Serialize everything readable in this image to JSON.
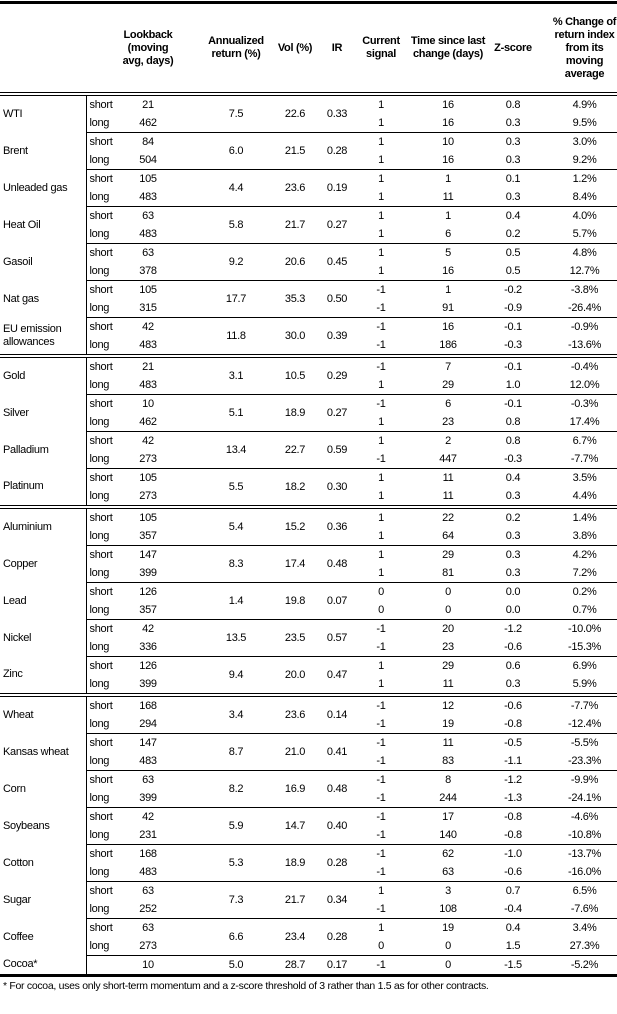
{
  "headers": {
    "name": "",
    "label": "",
    "lookback": "Lookback (moving avg, days)",
    "annualized": "Annualized return (%)",
    "vol": "Vol (%)",
    "ir": "IR",
    "signal": "Current signal",
    "time": "Time since last change (days)",
    "z": "Z-score",
    "pct": "% Change of return index from its moving average"
  },
  "sections": [
    {
      "commodities": [
        {
          "name": "WTI",
          "ann": "7.5",
          "vol": "22.6",
          "ir": "0.33",
          "rows": [
            {
              "label": "short",
              "lookback": "21",
              "signal": "1",
              "time": "16",
              "z": "0.8",
              "pct": "4.9%"
            },
            {
              "label": "long",
              "lookback": "462",
              "signal": "1",
              "time": "16",
              "z": "0.3",
              "pct": "9.5%"
            }
          ]
        },
        {
          "name": "Brent",
          "ann": "6.0",
          "vol": "21.5",
          "ir": "0.28",
          "rows": [
            {
              "label": "short",
              "lookback": "84",
              "signal": "1",
              "time": "10",
              "z": "0.3",
              "pct": "3.0%"
            },
            {
              "label": "long",
              "lookback": "504",
              "signal": "1",
              "time": "16",
              "z": "0.3",
              "pct": "9.2%"
            }
          ]
        },
        {
          "name": "Unleaded gas",
          "ann": "4.4",
          "vol": "23.6",
          "ir": "0.19",
          "rows": [
            {
              "label": "short",
              "lookback": "105",
              "signal": "1",
              "time": "1",
              "z": "0.1",
              "pct": "1.2%"
            },
            {
              "label": "long",
              "lookback": "483",
              "signal": "1",
              "time": "11",
              "z": "0.3",
              "pct": "8.4%"
            }
          ]
        },
        {
          "name": "Heat Oil",
          "ann": "5.8",
          "vol": "21.7",
          "ir": "0.27",
          "rows": [
            {
              "label": "short",
              "lookback": "63",
              "signal": "1",
              "time": "1",
              "z": "0.4",
              "pct": "4.0%"
            },
            {
              "label": "long",
              "lookback": "483",
              "signal": "1",
              "time": "6",
              "z": "0.2",
              "pct": "5.7%"
            }
          ]
        },
        {
          "name": "Gasoil",
          "ann": "9.2",
          "vol": "20.6",
          "ir": "0.45",
          "rows": [
            {
              "label": "short",
              "lookback": "63",
              "signal": "1",
              "time": "5",
              "z": "0.5",
              "pct": "4.8%"
            },
            {
              "label": "long",
              "lookback": "378",
              "signal": "1",
              "time": "16",
              "z": "0.5",
              "pct": "12.7%"
            }
          ]
        },
        {
          "name": "Nat gas",
          "ann": "17.7",
          "vol": "35.3",
          "ir": "0.50",
          "rows": [
            {
              "label": "short",
              "lookback": "105",
              "signal": "-1",
              "time": "1",
              "z": "-0.2",
              "pct": "-3.8%"
            },
            {
              "label": "long",
              "lookback": "315",
              "signal": "-1",
              "time": "91",
              "z": "-0.9",
              "pct": "-26.4%"
            }
          ]
        },
        {
          "name": "EU emission allowances",
          "ann": "11.8",
          "vol": "30.0",
          "ir": "0.39",
          "rows": [
            {
              "label": "short",
              "lookback": "42",
              "signal": "-1",
              "time": "16",
              "z": "-0.1",
              "pct": "-0.9%"
            },
            {
              "label": "long",
              "lookback": "483",
              "signal": "-1",
              "time": "186",
              "z": "-0.3",
              "pct": "-13.6%"
            }
          ]
        }
      ]
    },
    {
      "commodities": [
        {
          "name": "Gold",
          "ann": "3.1",
          "vol": "10.5",
          "ir": "0.29",
          "rows": [
            {
              "label": "short",
              "lookback": "21",
              "signal": "-1",
              "time": "7",
              "z": "-0.1",
              "pct": "-0.4%"
            },
            {
              "label": "long",
              "lookback": "483",
              "signal": "1",
              "time": "29",
              "z": "1.0",
              "pct": "12.0%"
            }
          ]
        },
        {
          "name": "Silver",
          "ann": "5.1",
          "vol": "18.9",
          "ir": "0.27",
          "rows": [
            {
              "label": "short",
              "lookback": "10",
              "signal": "-1",
              "time": "6",
              "z": "-0.1",
              "pct": "-0.3%"
            },
            {
              "label": "long",
              "lookback": "462",
              "signal": "1",
              "time": "23",
              "z": "0.8",
              "pct": "17.4%"
            }
          ]
        },
        {
          "name": "Palladium",
          "ann": "13.4",
          "vol": "22.7",
          "ir": "0.59",
          "rows": [
            {
              "label": "short",
              "lookback": "42",
              "signal": "1",
              "time": "2",
              "z": "0.8",
              "pct": "6.7%"
            },
            {
              "label": "long",
              "lookback": "273",
              "signal": "-1",
              "time": "447",
              "z": "-0.3",
              "pct": "-7.7%"
            }
          ]
        },
        {
          "name": "Platinum",
          "ann": "5.5",
          "vol": "18.2",
          "ir": "0.30",
          "rows": [
            {
              "label": "short",
              "lookback": "105",
              "signal": "1",
              "time": "11",
              "z": "0.4",
              "pct": "3.5%"
            },
            {
              "label": "long",
              "lookback": "273",
              "signal": "1",
              "time": "11",
              "z": "0.3",
              "pct": "4.4%"
            }
          ]
        }
      ]
    },
    {
      "commodities": [
        {
          "name": "Aluminium",
          "ann": "5.4",
          "vol": "15.2",
          "ir": "0.36",
          "rows": [
            {
              "label": "short",
              "lookback": "105",
              "signal": "1",
              "time": "22",
              "z": "0.2",
              "pct": "1.4%"
            },
            {
              "label": "long",
              "lookback": "357",
              "signal": "1",
              "time": "64",
              "z": "0.3",
              "pct": "3.8%"
            }
          ]
        },
        {
          "name": "Copper",
          "ann": "8.3",
          "vol": "17.4",
          "ir": "0.48",
          "rows": [
            {
              "label": "short",
              "lookback": "147",
              "signal": "1",
              "time": "29",
              "z": "0.3",
              "pct": "4.2%"
            },
            {
              "label": "long",
              "lookback": "399",
              "signal": "1",
              "time": "81",
              "z": "0.3",
              "pct": "7.2%"
            }
          ]
        },
        {
          "name": "Lead",
          "ann": "1.4",
          "vol": "19.8",
          "ir": "0.07",
          "rows": [
            {
              "label": "short",
              "lookback": "126",
              "signal": "0",
              "time": "0",
              "z": "0.0",
              "pct": "0.2%"
            },
            {
              "label": "long",
              "lookback": "357",
              "signal": "0",
              "time": "0",
              "z": "0.0",
              "pct": "0.7%"
            }
          ]
        },
        {
          "name": "Nickel",
          "ann": "13.5",
          "vol": "23.5",
          "ir": "0.57",
          "rows": [
            {
              "label": "short",
              "lookback": "42",
              "signal": "-1",
              "time": "20",
              "z": "-1.2",
              "pct": "-10.0%"
            },
            {
              "label": "long",
              "lookback": "336",
              "signal": "-1",
              "time": "23",
              "z": "-0.6",
              "pct": "-15.3%"
            }
          ]
        },
        {
          "name": "Zinc",
          "ann": "9.4",
          "vol": "20.0",
          "ir": "0.47",
          "rows": [
            {
              "label": "short",
              "lookback": "126",
              "signal": "1",
              "time": "29",
              "z": "0.6",
              "pct": "6.9%"
            },
            {
              "label": "long",
              "lookback": "399",
              "signal": "1",
              "time": "11",
              "z": "0.3",
              "pct": "5.9%"
            }
          ]
        }
      ]
    },
    {
      "commodities": [
        {
          "name": "Wheat",
          "ann": "3.4",
          "vol": "23.6",
          "ir": "0.14",
          "rows": [
            {
              "label": "short",
              "lookback": "168",
              "signal": "-1",
              "time": "12",
              "z": "-0.6",
              "pct": "-7.7%"
            },
            {
              "label": "long",
              "lookback": "294",
              "signal": "-1",
              "time": "19",
              "z": "-0.8",
              "pct": "-12.4%"
            }
          ]
        },
        {
          "name": "Kansas wheat",
          "ann": "8.7",
          "vol": "21.0",
          "ir": "0.41",
          "rows": [
            {
              "label": "short",
              "lookback": "147",
              "signal": "-1",
              "time": "11",
              "z": "-0.5",
              "pct": "-5.5%"
            },
            {
              "label": "long",
              "lookback": "483",
              "signal": "-1",
              "time": "83",
              "z": "-1.1",
              "pct": "-23.3%"
            }
          ]
        },
        {
          "name": "Corn",
          "ann": "8.2",
          "vol": "16.9",
          "ir": "0.48",
          "rows": [
            {
              "label": "short",
              "lookback": "63",
              "signal": "-1",
              "time": "8",
              "z": "-1.2",
              "pct": "-9.9%"
            },
            {
              "label": "long",
              "lookback": "399",
              "signal": "-1",
              "time": "244",
              "z": "-1.3",
              "pct": "-24.1%"
            }
          ]
        },
        {
          "name": "Soybeans",
          "ann": "5.9",
          "vol": "14.7",
          "ir": "0.40",
          "rows": [
            {
              "label": "short",
              "lookback": "42",
              "signal": "-1",
              "time": "17",
              "z": "-0.8",
              "pct": "-4.6%"
            },
            {
              "label": "long",
              "lookback": "231",
              "signal": "-1",
              "time": "140",
              "z": "-0.8",
              "pct": "-10.8%"
            }
          ]
        },
        {
          "name": "Cotton",
          "ann": "5.3",
          "vol": "18.9",
          "ir": "0.28",
          "rows": [
            {
              "label": "short",
              "lookback": "168",
              "signal": "-1",
              "time": "62",
              "z": "-1.0",
              "pct": "-13.7%"
            },
            {
              "label": "long",
              "lookback": "483",
              "signal": "-1",
              "time": "63",
              "z": "-0.6",
              "pct": "-16.0%"
            }
          ]
        },
        {
          "name": "Sugar",
          "ann": "7.3",
          "vol": "21.7",
          "ir": "0.34",
          "rows": [
            {
              "label": "short",
              "lookback": "63",
              "signal": "1",
              "time": "3",
              "z": "0.7",
              "pct": "6.5%"
            },
            {
              "label": "long",
              "lookback": "252",
              "signal": "-1",
              "time": "108",
              "z": "-0.4",
              "pct": "-7.6%"
            }
          ]
        },
        {
          "name": "Coffee",
          "ann": "6.6",
          "vol": "23.4",
          "ir": "0.28",
          "rows": [
            {
              "label": "short",
              "lookback": "63",
              "signal": "1",
              "time": "19",
              "z": "0.4",
              "pct": "3.4%"
            },
            {
              "label": "long",
              "lookback": "273",
              "signal": "0",
              "time": "0",
              "z": "1.5",
              "pct": "27.3%"
            }
          ]
        },
        {
          "name": "Cocoa*",
          "ann": "5.0",
          "vol": "28.7",
          "ir": "0.17",
          "rows": [
            {
              "label": "",
              "lookback": "10",
              "signal": "-1",
              "time": "0",
              "z": "-1.5",
              "pct": "-5.2%"
            }
          ]
        }
      ]
    }
  ],
  "footnote": "* For cocoa, uses only short-term momentum and a z-score threshold of 3 rather than 1.5 as for other contracts."
}
